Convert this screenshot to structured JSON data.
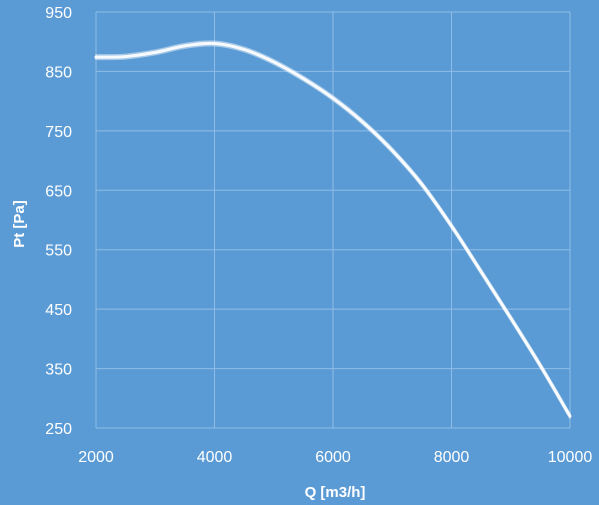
{
  "chart_data": {
    "type": "line",
    "title": "",
    "xlabel": "Q [m3/h]",
    "ylabel": "Pt [Pa]",
    "xlim": [
      2000,
      10000
    ],
    "ylim": [
      250,
      950
    ],
    "xticks": [
      2000,
      4000,
      6000,
      8000,
      10000
    ],
    "yticks": [
      250,
      350,
      450,
      550,
      650,
      750,
      850,
      950
    ],
    "grid": true,
    "legend": "none",
    "line_color": "#ffffff",
    "background_color": "#5b9bd5",
    "gridline_color": "#8fbce6",
    "series": [
      {
        "x": [
          2000,
          2500,
          3000,
          3500,
          4000,
          4500,
          5000,
          5500,
          6000,
          6500,
          7000,
          7500,
          8000,
          8500,
          9000,
          9500,
          10000
        ],
        "values": [
          874,
          875,
          882,
          893,
          897,
          887,
          866,
          838,
          805,
          765,
          717,
          660,
          590,
          513,
          435,
          355,
          270
        ]
      }
    ]
  }
}
